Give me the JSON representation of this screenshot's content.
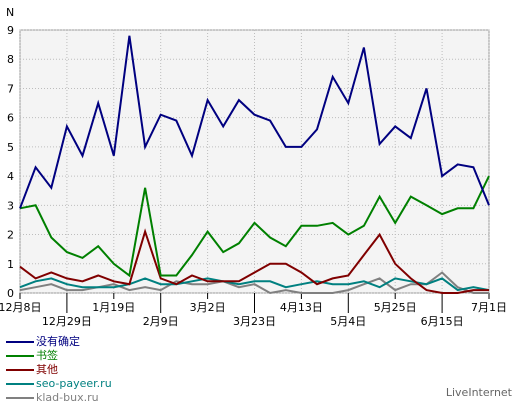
{
  "chart_data": {
    "type": "line",
    "ylabel": "N",
    "ylim": [
      0,
      9
    ],
    "yticks": [
      0,
      1,
      2,
      3,
      4,
      5,
      6,
      7,
      8,
      9
    ],
    "grid": true,
    "legend_position": "bottom-left",
    "xtick_labels_row1": [
      "12月8日",
      "1月19日",
      "3月2日",
      "4月13日",
      "5月25日",
      "7月1日"
    ],
    "xtick_labels_row2": [
      "12月29日",
      "2月9日",
      "3月23日",
      "5月4日",
      "6月15日"
    ],
    "series": [
      {
        "name": "没有确定",
        "color": "#000080",
        "values": [
          2.9,
          4.3,
          3.6,
          5.7,
          4.7,
          6.5,
          4.7,
          8.8,
          5.0,
          6.1,
          5.9,
          4.7,
          6.6,
          5.7,
          6.6,
          6.1,
          5.9,
          5.0,
          5.0,
          5.6,
          7.4,
          6.5,
          8.4,
          5.1,
          5.7,
          5.3,
          7.0,
          4.0,
          4.4,
          4.3,
          3.0
        ]
      },
      {
        "name": "书签",
        "color": "#008000",
        "values": [
          2.9,
          3.0,
          1.9,
          1.4,
          1.2,
          1.6,
          1.0,
          0.6,
          3.6,
          0.6,
          0.6,
          1.3,
          2.1,
          1.4,
          1.7,
          2.4,
          1.9,
          1.6,
          2.3,
          2.3,
          2.4,
          2.0,
          2.3,
          3.3,
          2.4,
          3.3,
          3.0,
          2.7,
          2.9,
          2.9,
          4.0
        ]
      },
      {
        "name": "其他",
        "color": "#800000",
        "values": [
          0.9,
          0.5,
          0.7,
          0.5,
          0.4,
          0.6,
          0.4,
          0.3,
          2.1,
          0.5,
          0.3,
          0.6,
          0.4,
          0.4,
          0.4,
          0.7,
          1.0,
          1.0,
          0.7,
          0.3,
          0.5,
          0.6,
          1.3,
          2.0,
          1.0,
          0.5,
          0.1,
          0.0,
          0.0,
          0.1,
          0.1
        ]
      },
      {
        "name": "seo-payeer.ru",
        "color": "#008080",
        "values": [
          0.2,
          0.4,
          0.5,
          0.3,
          0.2,
          0.2,
          0.2,
          0.3,
          0.5,
          0.3,
          0.3,
          0.4,
          0.5,
          0.4,
          0.3,
          0.4,
          0.4,
          0.2,
          0.3,
          0.4,
          0.3,
          0.3,
          0.4,
          0.2,
          0.5,
          0.4,
          0.3,
          0.5,
          0.1,
          0.2,
          0.1
        ]
      },
      {
        "name": "klad-bux.ru",
        "color": "#808080",
        "values": [
          0.1,
          0.2,
          0.3,
          0.1,
          0.1,
          0.2,
          0.3,
          0.1,
          0.2,
          0.1,
          0.4,
          0.3,
          0.3,
          0.4,
          0.2,
          0.3,
          0.0,
          0.1,
          0.0,
          0.0,
          0.0,
          0.1,
          0.3,
          0.5,
          0.1,
          0.3,
          0.3,
          0.7,
          0.2,
          0.0,
          0.0
        ]
      }
    ]
  },
  "footer": {
    "brand": "LiveInternet"
  }
}
